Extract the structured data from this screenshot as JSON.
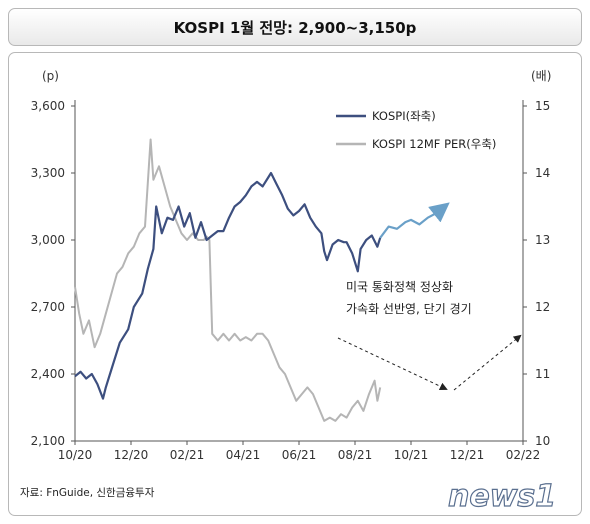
{
  "title": "KOSPI 1월 전망: 2,900~3,150p",
  "source": "자료: FnGuide, 신한금융투자",
  "watermark": "news1",
  "chart_data": {
    "type": "line",
    "left_axis": {
      "unit": "(p)",
      "ticks": [
        "2,100",
        "2,400",
        "2,700",
        "3,000",
        "3,300",
        "3,600"
      ],
      "range": [
        2100,
        3600
      ]
    },
    "right_axis": {
      "unit": "(배)",
      "ticks": [
        "10",
        "11",
        "12",
        "13",
        "14",
        "15"
      ],
      "range": [
        10,
        15
      ]
    },
    "x_axis": {
      "ticks": [
        "10/20",
        "12/20",
        "02/21",
        "04/21",
        "06/21",
        "08/21",
        "10/21",
        "12/21",
        "02/22"
      ]
    },
    "series": [
      {
        "name": "KOSPI(좌축)",
        "axis": "left",
        "color": "#3d4f7f",
        "points": [
          [
            0,
            2390
          ],
          [
            0.2,
            2410
          ],
          [
            0.4,
            2380
          ],
          [
            0.6,
            2400
          ],
          [
            0.8,
            2355
          ],
          [
            1.0,
            2290
          ],
          [
            1.1,
            2340
          ],
          [
            1.3,
            2420
          ],
          [
            1.6,
            2540
          ],
          [
            1.9,
            2600
          ],
          [
            2.1,
            2700
          ],
          [
            2.4,
            2760
          ],
          [
            2.6,
            2870
          ],
          [
            2.8,
            2960
          ],
          [
            2.9,
            3150
          ],
          [
            3.1,
            3030
          ],
          [
            3.3,
            3100
          ],
          [
            3.5,
            3090
          ],
          [
            3.7,
            3150
          ],
          [
            3.9,
            3060
          ],
          [
            4.1,
            3120
          ],
          [
            4.3,
            3010
          ],
          [
            4.5,
            3080
          ],
          [
            4.7,
            3000
          ],
          [
            4.9,
            3020
          ],
          [
            5.1,
            3040
          ],
          [
            5.3,
            3040
          ],
          [
            5.5,
            3100
          ],
          [
            5.7,
            3150
          ],
          [
            5.9,
            3170
          ],
          [
            6.1,
            3200
          ],
          [
            6.3,
            3240
          ],
          [
            6.5,
            3260
          ],
          [
            6.7,
            3240
          ],
          [
            6.9,
            3280
          ],
          [
            7.0,
            3300
          ],
          [
            7.2,
            3250
          ],
          [
            7.4,
            3200
          ],
          [
            7.6,
            3140
          ],
          [
            7.8,
            3110
          ],
          [
            8.0,
            3130
          ],
          [
            8.2,
            3160
          ],
          [
            8.4,
            3100
          ],
          [
            8.6,
            3060
          ],
          [
            8.8,
            3030
          ],
          [
            8.9,
            2950
          ],
          [
            9.0,
            2910
          ],
          [
            9.2,
            2980
          ],
          [
            9.4,
            3000
          ],
          [
            9.6,
            2990
          ],
          [
            9.7,
            2990
          ],
          [
            9.9,
            2940
          ],
          [
            10.1,
            2860
          ],
          [
            10.2,
            2960
          ],
          [
            10.4,
            3000
          ],
          [
            10.6,
            3020
          ],
          [
            10.8,
            2970
          ],
          [
            10.9,
            3010
          ]
        ]
      },
      {
        "name": "KOSPI 12MF PER(우축)",
        "axis": "right",
        "color": "#b5b5b5",
        "points": [
          [
            0,
            12.3
          ],
          [
            0.15,
            11.9
          ],
          [
            0.3,
            11.6
          ],
          [
            0.5,
            11.8
          ],
          [
            0.7,
            11.4
          ],
          [
            0.9,
            11.6
          ],
          [
            1.1,
            11.9
          ],
          [
            1.3,
            12.2
          ],
          [
            1.5,
            12.5
          ],
          [
            1.7,
            12.6
          ],
          [
            1.9,
            12.8
          ],
          [
            2.1,
            12.9
          ],
          [
            2.3,
            13.1
          ],
          [
            2.5,
            13.2
          ],
          [
            2.7,
            14.5
          ],
          [
            2.8,
            13.9
          ],
          [
            3.0,
            14.1
          ],
          [
            3.2,
            13.8
          ],
          [
            3.4,
            13.5
          ],
          [
            3.6,
            13.3
          ],
          [
            3.8,
            13.1
          ],
          [
            4.0,
            13.0
          ],
          [
            4.2,
            13.1
          ],
          [
            4.4,
            13.0
          ],
          [
            4.6,
            13.0
          ],
          [
            4.7,
            13.05
          ],
          [
            4.8,
            13.0
          ],
          [
            4.9,
            11.6
          ],
          [
            5.1,
            11.5
          ],
          [
            5.3,
            11.6
          ],
          [
            5.5,
            11.5
          ],
          [
            5.7,
            11.6
          ],
          [
            5.9,
            11.5
          ],
          [
            6.1,
            11.55
          ],
          [
            6.3,
            11.5
          ],
          [
            6.5,
            11.6
          ],
          [
            6.7,
            11.6
          ],
          [
            6.9,
            11.5
          ],
          [
            7.1,
            11.3
          ],
          [
            7.3,
            11.1
          ],
          [
            7.5,
            11.0
          ],
          [
            7.7,
            10.8
          ],
          [
            7.9,
            10.6
          ],
          [
            8.1,
            10.7
          ],
          [
            8.3,
            10.8
          ],
          [
            8.5,
            10.7
          ],
          [
            8.7,
            10.5
          ],
          [
            8.9,
            10.3
          ],
          [
            9.1,
            10.35
          ],
          [
            9.3,
            10.3
          ],
          [
            9.5,
            10.4
          ],
          [
            9.7,
            10.35
          ],
          [
            9.9,
            10.5
          ],
          [
            10.1,
            10.6
          ],
          [
            10.3,
            10.45
          ],
          [
            10.5,
            10.7
          ],
          [
            10.7,
            10.9
          ],
          [
            10.8,
            10.6
          ],
          [
            10.9,
            10.8
          ]
        ]
      },
      {
        "name": "KOSPI 전망",
        "axis": "left",
        "color": "#6aa0c8",
        "points": [
          [
            10.9,
            3010
          ],
          [
            11.2,
            3060
          ],
          [
            11.5,
            3050
          ],
          [
            11.8,
            3080
          ],
          [
            12.0,
            3090
          ],
          [
            12.3,
            3070
          ],
          [
            12.6,
            3100
          ],
          [
            12.9,
            3120
          ],
          [
            13.2,
            3150
          ]
        ]
      }
    ],
    "annotation": [
      "미국 통화정책 정상화",
      "가속화 선반영, 단기 경기"
    ]
  }
}
